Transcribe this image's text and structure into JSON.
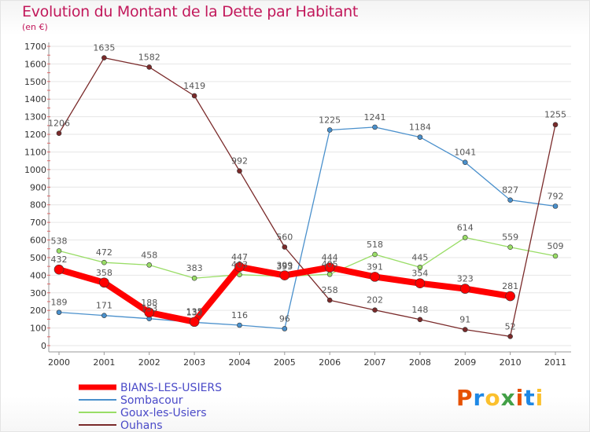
{
  "header": {
    "title": "Evolution du Montant de la Dette par Habitant",
    "subtitle": "(en €)"
  },
  "logo": {
    "text": "Proxiti",
    "colors": [
      "#e65100",
      "#1e88e5",
      "#fbc02d",
      "#43a047"
    ]
  },
  "chart_data": {
    "type": "line",
    "title": "Evolution du Montant de la Dette par Habitant",
    "ylabel": "(en €)",
    "xlabel": "",
    "x": [
      "2000",
      "2001",
      "2002",
      "2003",
      "2004",
      "2005",
      "2006",
      "2007",
      "2008",
      "2009",
      "2010",
      "2011"
    ],
    "ylim": [
      0,
      1700
    ],
    "yticks": [
      0,
      100,
      200,
      300,
      400,
      500,
      600,
      700,
      800,
      900,
      1000,
      1100,
      1200,
      1300,
      1400,
      1500,
      1600,
      1700
    ],
    "grid": "horizontal",
    "legend": "bottom-left",
    "series": [
      {
        "name": "BIANS-LES-USIERS",
        "color": "#ff0000",
        "width": 8,
        "values": [
          432,
          358,
          188,
          135,
          447,
          399,
          444,
          391,
          354,
          323,
          281,
          null
        ],
        "labels": [
          "432",
          "358",
          "188",
          "135",
          "447",
          "399",
          "444",
          "391",
          "354",
          "323",
          "281",
          ""
        ]
      },
      {
        "name": "Sombacour",
        "color": "#4a90cc",
        "width": 1.3,
        "values": [
          189,
          171,
          153,
          132,
          116,
          96,
          1225,
          1241,
          1184,
          1041,
          827,
          792
        ],
        "labels": [
          "189",
          "171",
          "153",
          "132",
          "116",
          "96",
          "1225",
          "1241",
          "1184",
          "1041",
          "827",
          "792"
        ]
      },
      {
        "name": "Goux-les-Usiers",
        "color": "#99dd66",
        "width": 1.3,
        "values": [
          538,
          472,
          458,
          383,
          403,
          393,
          405,
          518,
          445,
          614,
          559,
          509
        ],
        "labels": [
          "538",
          "472",
          "458",
          "383",
          "403",
          "393",
          "405",
          "518",
          "445",
          "614",
          "559",
          "509"
        ]
      },
      {
        "name": "Ouhans",
        "color": "#7a2a2a",
        "width": 1.3,
        "values": [
          1206,
          1635,
          1582,
          1419,
          992,
          560,
          258,
          202,
          148,
          91,
          52,
          1255
        ],
        "labels": [
          "1206",
          "1635",
          "1582",
          "1419",
          "992",
          "560",
          "258",
          "202",
          "148",
          "91",
          "52",
          "1255"
        ]
      }
    ]
  }
}
